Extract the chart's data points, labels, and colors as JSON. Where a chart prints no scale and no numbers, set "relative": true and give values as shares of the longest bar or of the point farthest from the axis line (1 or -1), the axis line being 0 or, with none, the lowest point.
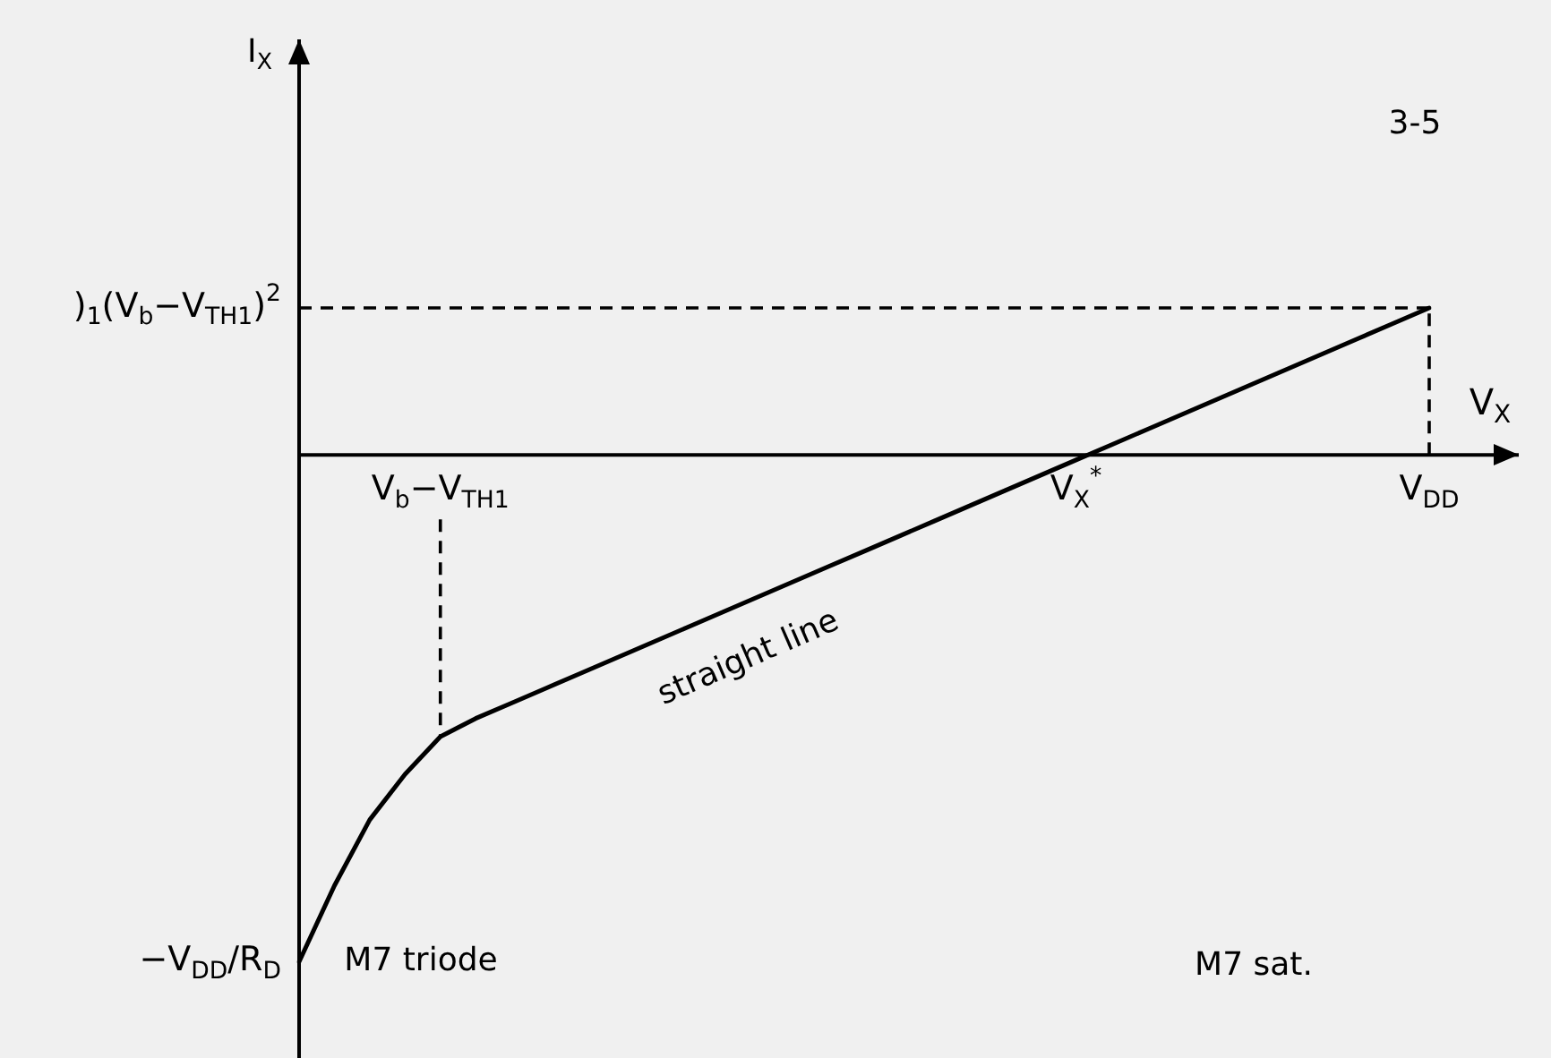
{
  "chart_data": {
    "type": "line",
    "xlabel": "V$_{X}$",
    "relative": true,
    "categories": [
      null,
      null,
      null,
      null,
      "V$_{b}$−V$_{TH1}$",
      null,
      null,
      null,
      null,
      null,
      null,
      null,
      null,
      null,
      null,
      null,
      null,
      null,
      null,
      null,
      null,
      null,
      "V$_{X}$$^{*}$",
      null,
      null,
      null,
      null,
      null,
      null,
      null,
      null,
      null,
      "V$_{DD}$"
    ],
    "series": [
      {
        "color": "#000000",
        "values": [
          -1,
          -0.85,
          -0.72,
          -0.63,
          -0.556,
          -0.52,
          -0.49,
          -0.46,
          -0.43,
          -0.4,
          -0.37,
          -0.34,
          -0.31,
          -0.28,
          -0.25,
          -0.22,
          -0.19,
          -0.16,
          -0.13,
          -0.1,
          -0.07,
          -0.04,
          -0.01,
          0.02,
          0.05,
          0.08,
          0.11,
          0.14,
          0.17,
          0.2,
          0.23,
          0.26,
          0.29
        ]
      }
    ],
    "ref_lines": [
      {
        "axis": "x",
        "value": "V$_{b}$−V$_{TH1}$",
        "label": null,
        "color": "#000000",
        "line_style": "dashed"
      },
      {
        "axis": "y",
        "value": 0.29,
        "label": null,
        "color": "#000000",
        "line_style": "dashed"
      },
      {
        "axis": "x",
        "value": "V$_{DD}$",
        "label": null,
        "color": "#000000",
        "line_style": "dashed"
      }
    ],
    "annotations": [
      "3-5",
      "straight line",
      "M7 triode",
      "M7 sat.",
      "−V$_{DD}$/R$_{D}$",
      ")$_{1}$(V$_{b}$−V$_{TH1}$)$^{2}$",
      "I$_{X}$"
    ],
    "line_style": "solid"
  }
}
